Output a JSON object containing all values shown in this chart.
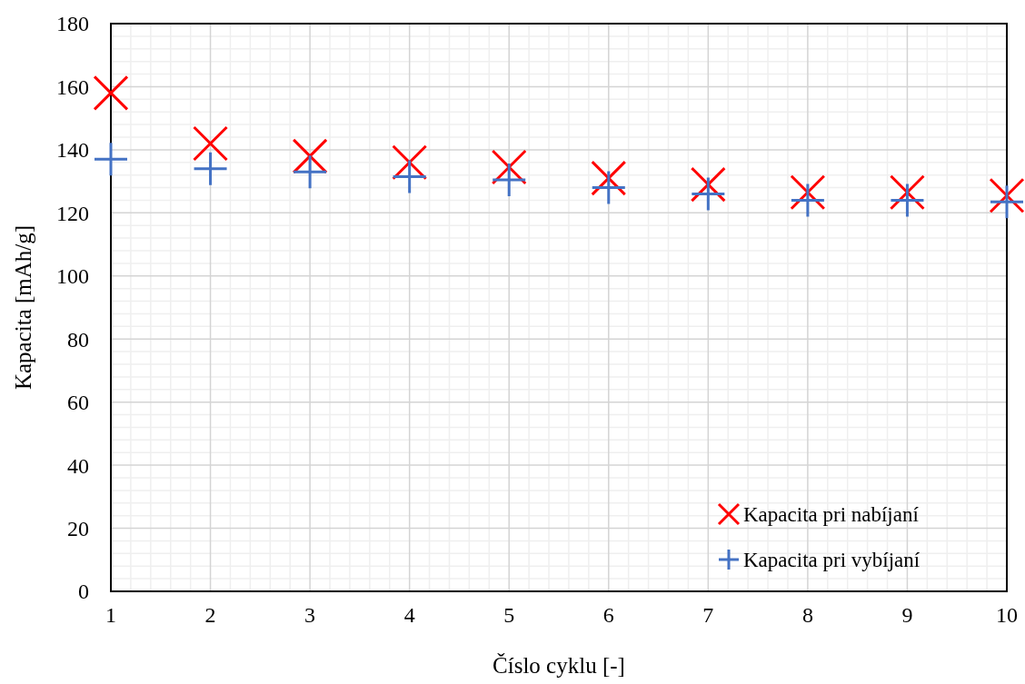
{
  "chart_data": {
    "type": "scatter",
    "xlabel": "Číslo cyklu [-]",
    "ylabel": "Kapacita [mAh/g]",
    "x": [
      1,
      2,
      3,
      4,
      5,
      6,
      7,
      8,
      9,
      10
    ],
    "series": [
      {
        "name": "Kapacita pri nabíjaní",
        "color": "#ff0000",
        "marker": "x",
        "values": [
          158,
          142,
          138,
          136,
          134.5,
          131,
          129,
          126.5,
          126.5,
          125.5
        ]
      },
      {
        "name": "Kapacita pri vybíjaní",
        "color": "#4472c4",
        "marker": "cross",
        "values": [
          137,
          134,
          133,
          131.5,
          130.5,
          128,
          126,
          124,
          124,
          123.5
        ]
      }
    ],
    "xlim": [
      1,
      10
    ],
    "xticks": [
      1,
      2,
      3,
      4,
      5,
      6,
      7,
      8,
      9,
      10
    ],
    "ylim": [
      0,
      180
    ],
    "yticks": [
      0,
      20,
      40,
      60,
      80,
      100,
      120,
      140,
      160,
      180
    ],
    "grid": true,
    "legend": "bottom right"
  }
}
